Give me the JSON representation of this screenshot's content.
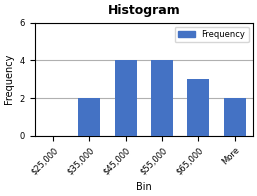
{
  "chart_data": {
    "type": "bar",
    "title": "Histogram",
    "x_label": "Bin",
    "y_label": "Frequency",
    "categories": [
      "$25,000",
      "$35,000",
      "$45,000",
      "$55,000",
      "$65,000",
      "More"
    ],
    "series": [
      {
        "name": "Frequency",
        "color": "#4472C4",
        "values": [
          0,
          2,
          4,
          4,
          3,
          2
        ]
      }
    ],
    "ylim": [
      0,
      6
    ],
    "yticks": [
      0,
      2,
      4,
      6
    ],
    "grid": true,
    "legend": "upper right"
  }
}
